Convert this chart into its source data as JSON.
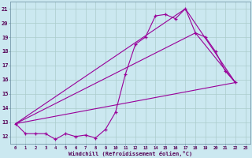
{
  "xlabel": "Windchill (Refroidissement éolien,°C)",
  "bg_color": "#cbe8f0",
  "line_color": "#990099",
  "grid_color": "#aacccc",
  "xmin": -0.5,
  "xmax": 23.5,
  "ymin": 11.5,
  "ymax": 21.5,
  "yticks": [
    12,
    13,
    14,
    15,
    16,
    17,
    18,
    19,
    20,
    21
  ],
  "xticks": [
    0,
    1,
    2,
    3,
    4,
    5,
    6,
    7,
    8,
    9,
    10,
    11,
    12,
    13,
    14,
    15,
    16,
    17,
    18,
    19,
    20,
    21,
    22,
    23
  ],
  "line1_x": [
    0,
    1,
    2,
    3,
    4,
    5,
    6,
    7,
    8,
    9,
    10,
    11,
    12,
    13,
    14,
    15,
    16,
    17,
    18,
    19,
    20,
    21,
    22
  ],
  "line1_y": [
    12.9,
    12.2,
    12.2,
    12.2,
    11.8,
    12.2,
    12.0,
    12.1,
    11.9,
    12.5,
    13.7,
    16.4,
    18.5,
    19.0,
    20.5,
    20.6,
    20.3,
    21.0,
    19.3,
    19.0,
    18.0,
    16.6,
    15.8
  ],
  "line2_x": [
    0,
    22
  ],
  "line2_y": [
    12.9,
    15.8
  ],
  "line3_x": [
    0,
    17,
    22
  ],
  "line3_y": [
    12.9,
    21.0,
    15.8
  ],
  "line4_x": [
    0,
    18,
    22
  ],
  "line4_y": [
    12.9,
    19.3,
    15.8
  ]
}
